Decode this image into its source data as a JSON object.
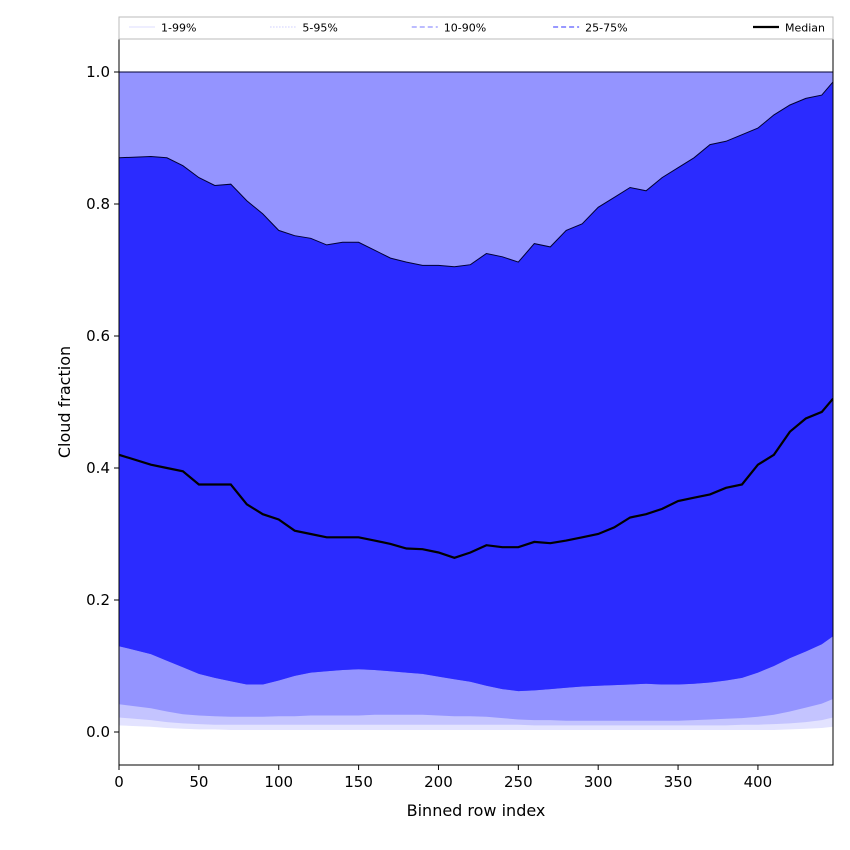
{
  "chart_data": {
    "type": "area",
    "title": "",
    "xlabel": "Binned row index",
    "ylabel": "Cloud fraction",
    "xlim": [
      0,
      447
    ],
    "ylim": [
      -0.05,
      1.05
    ],
    "x_ticks": [
      "0",
      "50",
      "100",
      "150",
      "200",
      "250",
      "300",
      "350",
      "400"
    ],
    "y_ticks": [
      "0.0",
      "0.2",
      "0.4",
      "0.6",
      "0.8",
      "1.0"
    ],
    "grid": false,
    "legend_position": "top",
    "legend": [
      {
        "label": "1-99%",
        "color": "#e3e3ff",
        "style": "solid"
      },
      {
        "label": "5-95%",
        "color": "#c4c4ff",
        "style": "dotted"
      },
      {
        "label": "10-90%",
        "color": "#9494ff",
        "style": "dashed"
      },
      {
        "label": "25-75%",
        "color": "#5a5aff",
        "style": "dashed"
      },
      {
        "label": "Median",
        "color": "#000000",
        "style": "solid"
      }
    ],
    "x": [
      0,
      20,
      30,
      40,
      50,
      60,
      70,
      80,
      90,
      100,
      110,
      120,
      130,
      140,
      150,
      160,
      170,
      180,
      190,
      200,
      210,
      220,
      230,
      240,
      250,
      260,
      270,
      280,
      290,
      300,
      310,
      320,
      330,
      340,
      350,
      360,
      370,
      380,
      390,
      400,
      410,
      420,
      430,
      440,
      447
    ],
    "bands": [
      {
        "name": "1-99%",
        "color": "#e3e3ff",
        "lower": [
          0.01,
          0.008,
          0.006,
          0.005,
          0.004,
          0.004,
          0.003,
          0.003,
          0.003,
          0.003,
          0.003,
          0.003,
          0.003,
          0.003,
          0.003,
          0.003,
          0.003,
          0.003,
          0.003,
          0.003,
          0.003,
          0.003,
          0.003,
          0.003,
          0.003,
          0.003,
          0.003,
          0.003,
          0.003,
          0.003,
          0.003,
          0.003,
          0.003,
          0.003,
          0.003,
          0.003,
          0.003,
          0.003,
          0.003,
          0.003,
          0.003,
          0.004,
          0.005,
          0.006,
          0.008
        ],
        "upper": [
          1.0,
          1.0,
          1.0,
          1.0,
          1.0,
          1.0,
          1.0,
          1.0,
          1.0,
          1.0,
          1.0,
          1.0,
          1.0,
          1.0,
          1.0,
          1.0,
          1.0,
          1.0,
          1.0,
          1.0,
          1.0,
          1.0,
          1.0,
          1.0,
          1.0,
          1.0,
          1.0,
          1.0,
          1.0,
          1.0,
          1.0,
          1.0,
          1.0,
          1.0,
          1.0,
          1.0,
          1.0,
          1.0,
          1.0,
          1.0,
          1.0,
          1.0,
          1.0,
          1.0,
          1.0
        ]
      },
      {
        "name": "5-95%",
        "color": "#c4c4ff",
        "lower": [
          0.022,
          0.018,
          0.015,
          0.013,
          0.012,
          0.011,
          0.011,
          0.011,
          0.011,
          0.011,
          0.011,
          0.011,
          0.011,
          0.011,
          0.011,
          0.011,
          0.011,
          0.011,
          0.011,
          0.011,
          0.011,
          0.011,
          0.011,
          0.011,
          0.011,
          0.01,
          0.01,
          0.01,
          0.01,
          0.01,
          0.01,
          0.01,
          0.01,
          0.01,
          0.01,
          0.01,
          0.01,
          0.01,
          0.011,
          0.011,
          0.012,
          0.013,
          0.015,
          0.018,
          0.022
        ],
        "upper": [
          1.0,
          1.0,
          1.0,
          1.0,
          1.0,
          1.0,
          1.0,
          1.0,
          1.0,
          1.0,
          1.0,
          1.0,
          1.0,
          1.0,
          1.0,
          1.0,
          1.0,
          1.0,
          1.0,
          1.0,
          1.0,
          1.0,
          1.0,
          1.0,
          1.0,
          1.0,
          1.0,
          1.0,
          1.0,
          1.0,
          1.0,
          1.0,
          1.0,
          1.0,
          1.0,
          1.0,
          1.0,
          1.0,
          1.0,
          1.0,
          1.0,
          1.0,
          1.0,
          1.0,
          1.0
        ]
      },
      {
        "name": "10-90%",
        "color": "#9494ff",
        "lower": [
          0.042,
          0.036,
          0.031,
          0.027,
          0.025,
          0.024,
          0.023,
          0.023,
          0.023,
          0.024,
          0.024,
          0.025,
          0.025,
          0.025,
          0.025,
          0.026,
          0.026,
          0.026,
          0.026,
          0.025,
          0.024,
          0.024,
          0.023,
          0.021,
          0.019,
          0.018,
          0.018,
          0.017,
          0.017,
          0.017,
          0.017,
          0.017,
          0.017,
          0.017,
          0.017,
          0.018,
          0.019,
          0.02,
          0.021,
          0.023,
          0.026,
          0.031,
          0.037,
          0.043,
          0.05
        ],
        "upper": [
          1.0,
          1.0,
          1.0,
          1.0,
          1.0,
          1.0,
          1.0,
          1.0,
          1.0,
          1.0,
          1.0,
          1.0,
          1.0,
          1.0,
          1.0,
          1.0,
          1.0,
          1.0,
          1.0,
          1.0,
          1.0,
          1.0,
          1.0,
          1.0,
          1.0,
          1.0,
          1.0,
          1.0,
          1.0,
          1.0,
          1.0,
          1.0,
          1.0,
          1.0,
          1.0,
          1.0,
          1.0,
          1.0,
          1.0,
          1.0,
          1.0,
          1.0,
          1.0,
          1.0,
          1.0
        ]
      },
      {
        "name": "25-75%",
        "color": "#5a5aff",
        "lower": [
          0.13,
          0.118,
          0.108,
          0.098,
          0.088,
          0.082,
          0.077,
          0.072,
          0.072,
          0.078,
          0.085,
          0.09,
          0.092,
          0.094,
          0.095,
          0.094,
          0.092,
          0.09,
          0.088,
          0.084,
          0.08,
          0.076,
          0.07,
          0.065,
          0.062,
          0.063,
          0.065,
          0.067,
          0.069,
          0.07,
          0.071,
          0.072,
          0.073,
          0.072,
          0.072,
          0.073,
          0.075,
          0.078,
          0.082,
          0.09,
          0.1,
          0.112,
          0.122,
          0.133,
          0.145
        ],
        "upper": [
          0.87,
          0.872,
          0.87,
          0.858,
          0.84,
          0.828,
          0.83,
          0.805,
          0.785,
          0.76,
          0.752,
          0.748,
          0.738,
          0.742,
          0.742,
          0.73,
          0.718,
          0.712,
          0.707,
          0.707,
          0.705,
          0.708,
          0.725,
          0.72,
          0.712,
          0.74,
          0.735,
          0.76,
          0.77,
          0.795,
          0.81,
          0.825,
          0.82,
          0.84,
          0.855,
          0.87,
          0.89,
          0.895,
          0.905,
          0.915,
          0.935,
          0.95,
          0.96,
          0.965,
          0.985
        ]
      }
    ],
    "series": [
      {
        "name": "Median",
        "color": "#000000",
        "values": [
          0.42,
          0.405,
          0.4,
          0.395,
          0.375,
          0.375,
          0.375,
          0.345,
          0.33,
          0.322,
          0.305,
          0.3,
          0.295,
          0.295,
          0.295,
          0.29,
          0.285,
          0.278,
          0.277,
          0.272,
          0.264,
          0.272,
          0.283,
          0.28,
          0.28,
          0.288,
          0.286,
          0.29,
          0.295,
          0.3,
          0.31,
          0.325,
          0.33,
          0.338,
          0.35,
          0.355,
          0.36,
          0.37,
          0.375,
          0.405,
          0.42,
          0.455,
          0.475,
          0.485,
          0.505
        ]
      }
    ]
  }
}
